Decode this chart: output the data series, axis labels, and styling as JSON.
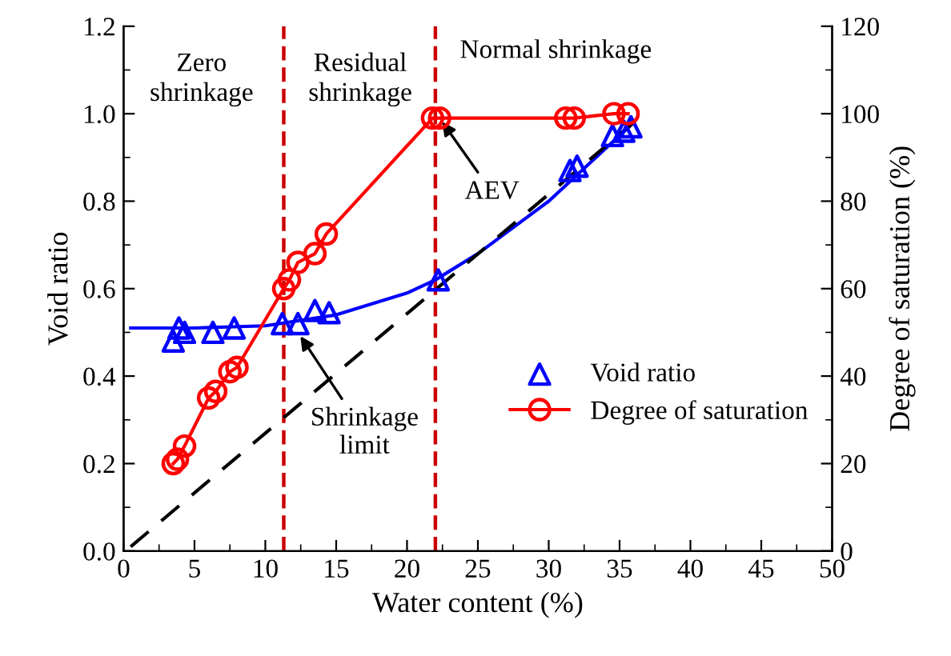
{
  "chart_data": {
    "type": "scatter",
    "xlabel": "Water content (%)",
    "ylabel": "Void ratio",
    "y2label": "Degree of saturation (%)",
    "xlim": [
      0,
      50
    ],
    "xticks": [
      0,
      5,
      10,
      15,
      20,
      25,
      30,
      35,
      40,
      45,
      50
    ],
    "ylim": [
      0,
      1.2
    ],
    "yticks": [
      {
        "value": 0,
        "label": "0.0"
      },
      {
        "value": 0.2,
        "label": "0.2"
      },
      {
        "value": 0.4,
        "label": "0.4"
      },
      {
        "value": 0.6,
        "label": "0.6"
      },
      {
        "value": 0.8,
        "label": "0.8"
      },
      {
        "value": 1.0,
        "label": "1.0"
      },
      {
        "value": 1.2,
        "label": "1.2"
      }
    ],
    "y2lim": [
      0,
      120
    ],
    "y2ticks": [
      0,
      20,
      40,
      60,
      80,
      100,
      120
    ],
    "grid": false,
    "legend": "right",
    "series": [
      {
        "name": "Void ratio",
        "marker": "triangle",
        "color": "#0000ff",
        "x": [
          3.5,
          3.9,
          4.3,
          6.3,
          7.8,
          11.2,
          12.3,
          13.5,
          14.5,
          22.2,
          31.5,
          32.0,
          34.5,
          35.3,
          35.8
        ],
        "values": [
          0.48,
          0.51,
          0.5,
          0.5,
          0.51,
          0.52,
          0.52,
          0.55,
          0.545,
          0.62,
          0.87,
          0.88,
          0.95,
          0.96,
          0.97
        ]
      },
      {
        "name": "Degree of saturation",
        "type": "line",
        "marker": "circle",
        "line_style": "solid",
        "axis": "y2",
        "color": "#ff0000",
        "x": [
          3.5,
          3.8,
          4.3,
          6.0,
          6.5,
          7.5,
          8.0,
          11.3,
          11.7,
          12.3,
          13.5,
          14.3,
          21.8,
          22.3,
          31.2,
          31.8,
          34.6,
          35.6
        ],
        "values": [
          20,
          21,
          24,
          35,
          36.5,
          41,
          42,
          60,
          62,
          66,
          68,
          72.5,
          99,
          99,
          99,
          99,
          100,
          100
        ]
      },
      {
        "type": "line",
        "marker": "none",
        "line_style": "solid",
        "color": "#0000ff",
        "x": [
          0.5,
          5,
          10,
          15,
          20,
          22,
          25,
          30,
          36
        ],
        "values": [
          0.51,
          0.51,
          0.515,
          0.54,
          0.59,
          0.62,
          0.68,
          0.8,
          0.98
        ]
      },
      {
        "type": "line",
        "marker": "none",
        "line_style": "dashed",
        "color": "#000000",
        "x": [
          0.5,
          36
        ],
        "values": [
          0.01,
          0.98
        ]
      }
    ],
    "ref_lines": [
      {
        "axis": "x",
        "value": 11.3,
        "color": "#cc0000",
        "line_style": "dashed"
      },
      {
        "axis": "x",
        "value": 22,
        "color": "#cc0000",
        "line_style": "dashed"
      }
    ],
    "annotations": [
      "Zero\nshrinkage",
      "Residual\nshrinkage",
      "Normal shrinkage",
      {
        "text": "AEV",
        "x": 22.3,
        "y": 0.99
      },
      {
        "text": "Shrinkage\nlimit",
        "x": 12.3,
        "y": 0.5
      }
    ]
  }
}
